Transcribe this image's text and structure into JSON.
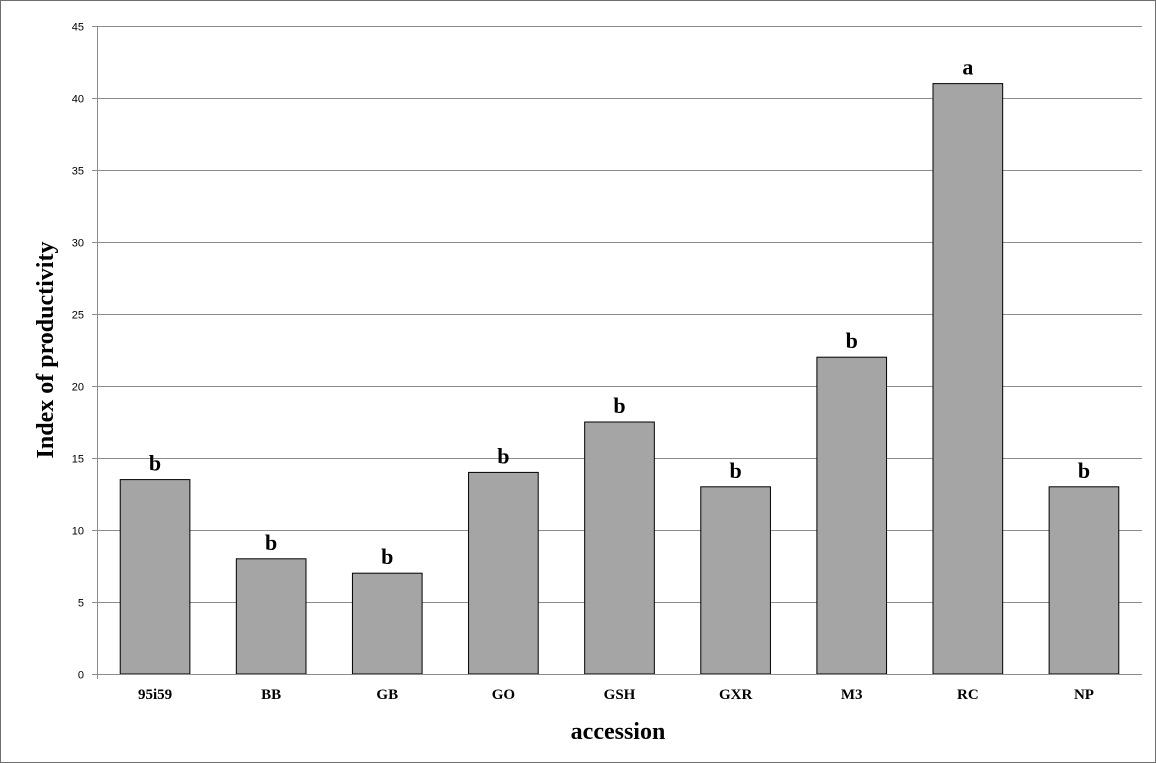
{
  "chart_data": {
    "type": "bar",
    "title": "",
    "xlabel": "accession",
    "ylabel": "Index of productivity",
    "categories": [
      "95i59",
      "BB",
      "GB",
      "GO",
      "GSH",
      "GXR",
      "M3",
      "RC",
      "NP"
    ],
    "values": [
      13.5,
      8,
      7,
      14,
      17.5,
      13,
      22,
      41,
      13
    ],
    "data_labels": [
      "b",
      "b",
      "b",
      "b",
      "b",
      "b",
      "b",
      "a",
      "b"
    ],
    "ylim": [
      0,
      45
    ],
    "yticks": [
      0,
      5,
      10,
      15,
      20,
      25,
      30,
      35,
      40,
      45
    ],
    "grid": true,
    "legend": "none",
    "colors": {
      "bar_fill": "#a5a5a5",
      "bar_stroke": "#000000",
      "grid": "#8c8c8c"
    }
  }
}
